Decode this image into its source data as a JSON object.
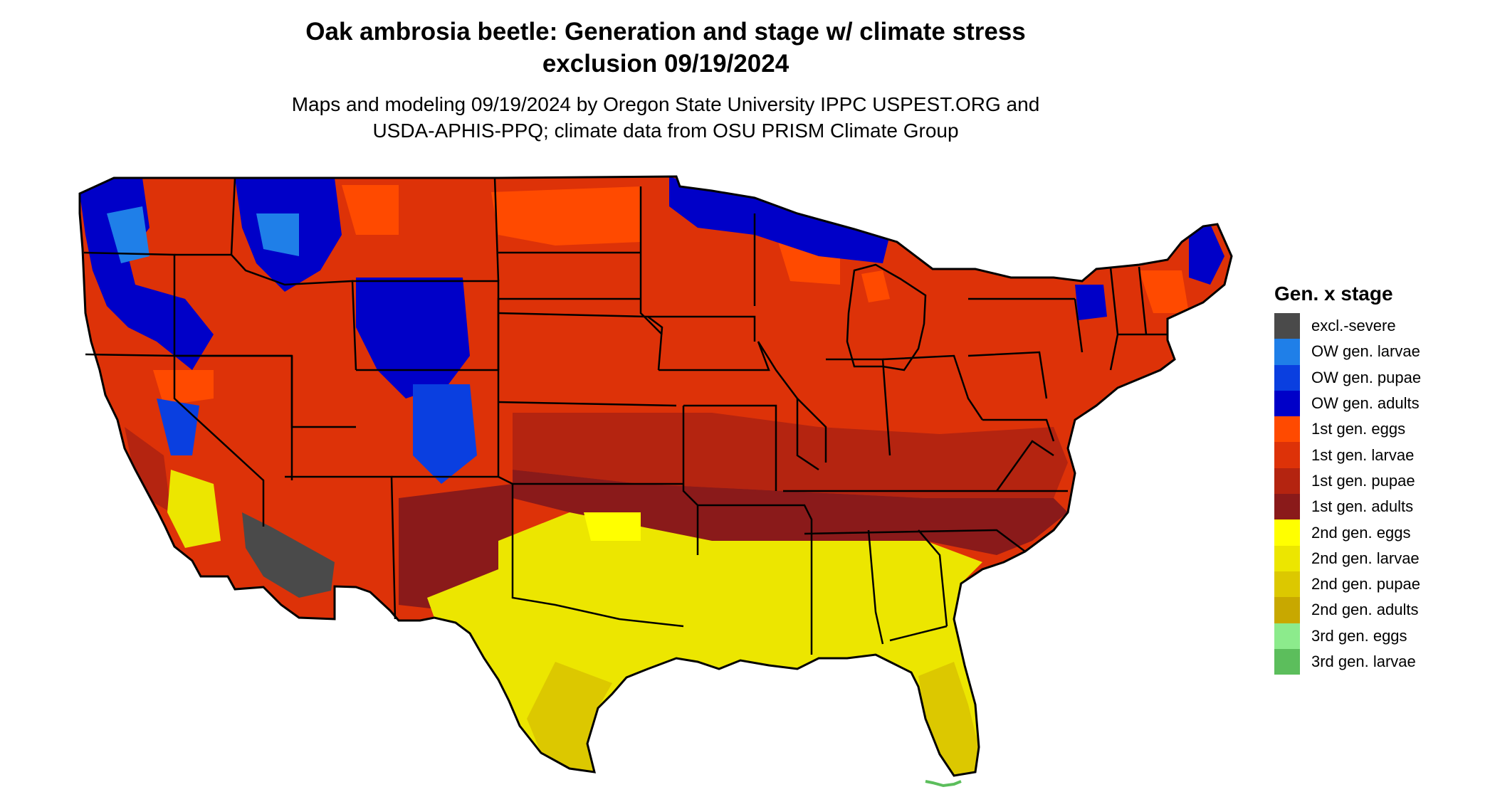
{
  "title_line1": "Oak ambrosia beetle: Generation and stage w/ climate stress",
  "title_line2": "exclusion 09/19/2024",
  "subtitle_line1": "Maps and modeling 09/19/2024 by Oregon State University IPPC USPEST.ORG and",
  "subtitle_line2": "USDA-APHIS-PPQ; climate data from OSU PRISM Climate Group",
  "legend": {
    "title": "Gen. x stage",
    "items": [
      {
        "label": "excl.-severe",
        "color": "#4a4a4a"
      },
      {
        "label": "OW gen. larvae",
        "color": "#1f7fe8"
      },
      {
        "label": "OW gen. pupae",
        "color": "#0a3fe0"
      },
      {
        "label": "OW gen. adults",
        "color": "#0000c8"
      },
      {
        "label": "1st gen. eggs",
        "color": "#ff4a00"
      },
      {
        "label": "1st gen. larvae",
        "color": "#dd3208"
      },
      {
        "label": "1st gen. pupae",
        "color": "#b42410"
      },
      {
        "label": "1st gen. adults",
        "color": "#8a1a1a"
      },
      {
        "label": "2nd gen. eggs",
        "color": "#ffff00"
      },
      {
        "label": "2nd gen. larvae",
        "color": "#ece600"
      },
      {
        "label": "2nd gen. pupae",
        "color": "#dcc800"
      },
      {
        "label": "2nd gen. adults",
        "color": "#c8a800"
      },
      {
        "label": "3rd gen. eggs",
        "color": "#8ceb8c"
      },
      {
        "label": "3rd gen. larvae",
        "color": "#5cbe5c"
      }
    ]
  }
}
